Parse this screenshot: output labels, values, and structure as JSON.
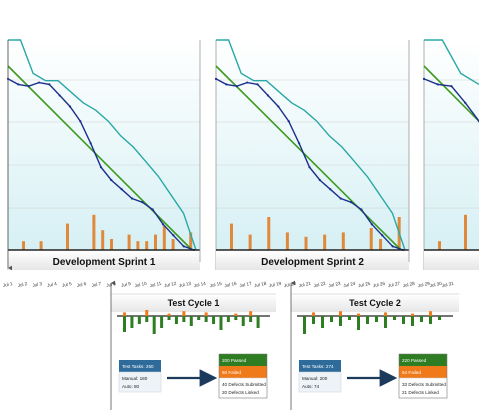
{
  "chart_data": {
    "type": "line",
    "note_series": "Burndown per sprint with defect bars beneath; test cycles below",
    "sprints": [
      {
        "label": "Development Sprint 1",
        "dates": [
          "Jul 1",
          "Jul 2",
          "Jul 3",
          "Jul 4",
          "Jul 5",
          "Jul 6",
          "Jul 7",
          "Jul 8",
          "Jul 9",
          "Jul 10",
          "Jul 11",
          "Jul 12",
          "Jul 13",
          "Jul 14"
        ],
        "ideal": [
          100,
          0
        ],
        "planned": [
          100,
          100,
          96,
          92,
          92,
          86,
          80,
          76,
          70,
          62,
          56,
          48,
          40,
          30,
          20,
          0
        ],
        "actual": [
          93,
          90,
          89,
          91,
          90,
          84,
          78,
          70,
          58,
          45,
          38,
          33,
          28,
          26,
          22,
          14,
          8,
          2,
          0
        ],
        "defects": [
          4,
          0,
          4,
          0,
          0,
          12,
          0,
          0,
          16,
          9,
          5,
          0,
          7,
          4,
          4,
          7,
          11,
          5,
          0,
          8
        ]
      },
      {
        "label": "Development Sprint 2",
        "dates": [
          "Jul 15",
          "Jul 16",
          "Jul 17",
          "Jul 18",
          "Jul 19",
          "Jul 20",
          "Jul 21",
          "Jul 22",
          "Jul 23",
          "Jul 24",
          "Jul 25",
          "Jul 26",
          "Jul 27",
          "Jul 28"
        ],
        "ideal": [
          100,
          0
        ],
        "planned": [
          100,
          100,
          96,
          92,
          92,
          86,
          80,
          76,
          70,
          62,
          56,
          48,
          40,
          30,
          20,
          0
        ],
        "actual": [
          93,
          90,
          89,
          91,
          90,
          84,
          78,
          70,
          58,
          45,
          38,
          33,
          28,
          26,
          22,
          14,
          8,
          2,
          0
        ],
        "defects": [
          12,
          0,
          7,
          0,
          15,
          0,
          8,
          0,
          6,
          0,
          7,
          0,
          8,
          0,
          0,
          10,
          5,
          0,
          15
        ]
      },
      {
        "label": "",
        "dates": [
          "Jul 29",
          "Jul 30",
          "Jul 31"
        ],
        "ideal": [
          100,
          70
        ],
        "planned": [
          100,
          100,
          96,
          90
        ],
        "actual": [
          93,
          90,
          89,
          80,
          70
        ],
        "defects": [
          4,
          0,
          16
        ]
      }
    ],
    "test_cycles": [
      {
        "title": "Test Cycle 1",
        "bars_above": [
          3,
          0,
          0,
          5,
          0,
          0,
          2,
          0,
          4,
          0,
          0,
          3,
          0,
          0,
          0,
          2,
          0,
          4,
          0
        ],
        "bars_below": [
          -8,
          -6,
          -4,
          -3,
          -9,
          -6,
          -2,
          -4,
          -3,
          -5,
          -2,
          -3,
          -4,
          -7,
          -3,
          -2,
          -5,
          -3,
          -6
        ],
        "left_box": {
          "header": "Test Tasks: 260",
          "lines": [
            "Manual: 180",
            "Auto: 80"
          ]
        },
        "right_box": {
          "passed": "200 Passed",
          "failed": "60 Failed",
          "lines": [
            "40 Defects Submitted",
            "20 Defects Linked"
          ]
        }
      },
      {
        "title": "Test Cycle 2",
        "bars_above": [
          0,
          3,
          0,
          0,
          4,
          0,
          2,
          0,
          0,
          3,
          0,
          0,
          2,
          0,
          4,
          0
        ],
        "bars_below": [
          -9,
          -4,
          -6,
          -3,
          -5,
          -2,
          -7,
          -4,
          -3,
          -6,
          -2,
          -4,
          -5,
          -3,
          -4,
          -2
        ],
        "left_box": {
          "header": "Test Tasks: 274",
          "lines": [
            "Manual: 200",
            "Auto: 74"
          ]
        },
        "right_box": {
          "passed": "220 Passed",
          "failed": "54 Failed",
          "lines": [
            "33 Defects Submitted",
            "21 Defects Linked"
          ]
        }
      }
    ],
    "colors": {
      "ideal": "#3c9a1e",
      "planned": "#2aa8a5",
      "actual": "#1b2f8c",
      "defect_bar": "#e0893a",
      "test_pass": "#2e7d22",
      "test_fail": "#f07a1a",
      "box_header": "#2e6b9a",
      "plot_bg_top": "#ffffff",
      "plot_bg_bottom": "#d6f0f4"
    },
    "grid": true
  }
}
